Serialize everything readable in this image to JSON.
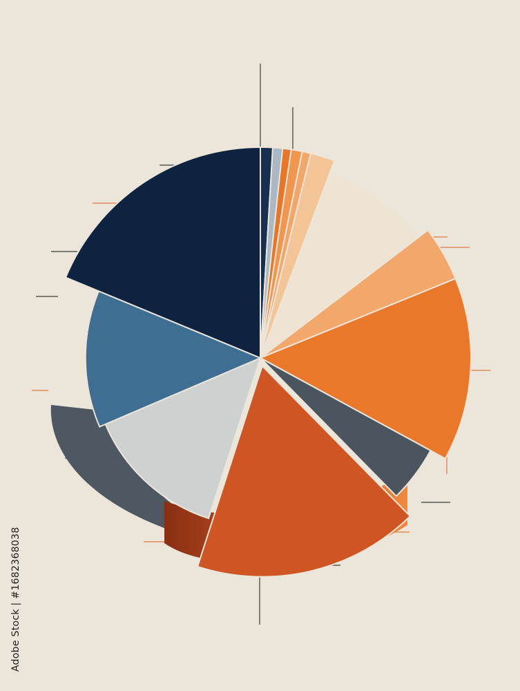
{
  "watermark": {
    "id_text": "Adobe Stock | #1682368038"
  },
  "chart_data": {
    "type": "pie",
    "title": "",
    "legend": "none",
    "labels_shown": false,
    "slices": [
      {
        "value": 1.0,
        "color": "#17304d"
      },
      {
        "value": 0.8,
        "color": "#aab8c3"
      },
      {
        "value": 0.7,
        "color": "#e87626"
      },
      {
        "value": 0.9,
        "color": "#f0964f"
      },
      {
        "value": 0.7,
        "color": "#f2a76a"
      },
      {
        "value": 2.0,
        "color": "#f3c495"
      },
      {
        "value": 9.5,
        "color": "#efe4d3"
      },
      {
        "value": 4.5,
        "color": "#f3a86b"
      },
      {
        "value": 15.0,
        "color": "#e9782b"
      },
      {
        "value": 5.0,
        "color": "#4a5560"
      },
      {
        "value": 18.5,
        "color": "#cf5523"
      },
      {
        "value": 14.5,
        "color": "#cdd1d0"
      },
      {
        "value": 13.5,
        "color": "#3f6e93"
      },
      {
        "value": 20.0,
        "color": "#0e2340"
      }
    ]
  }
}
